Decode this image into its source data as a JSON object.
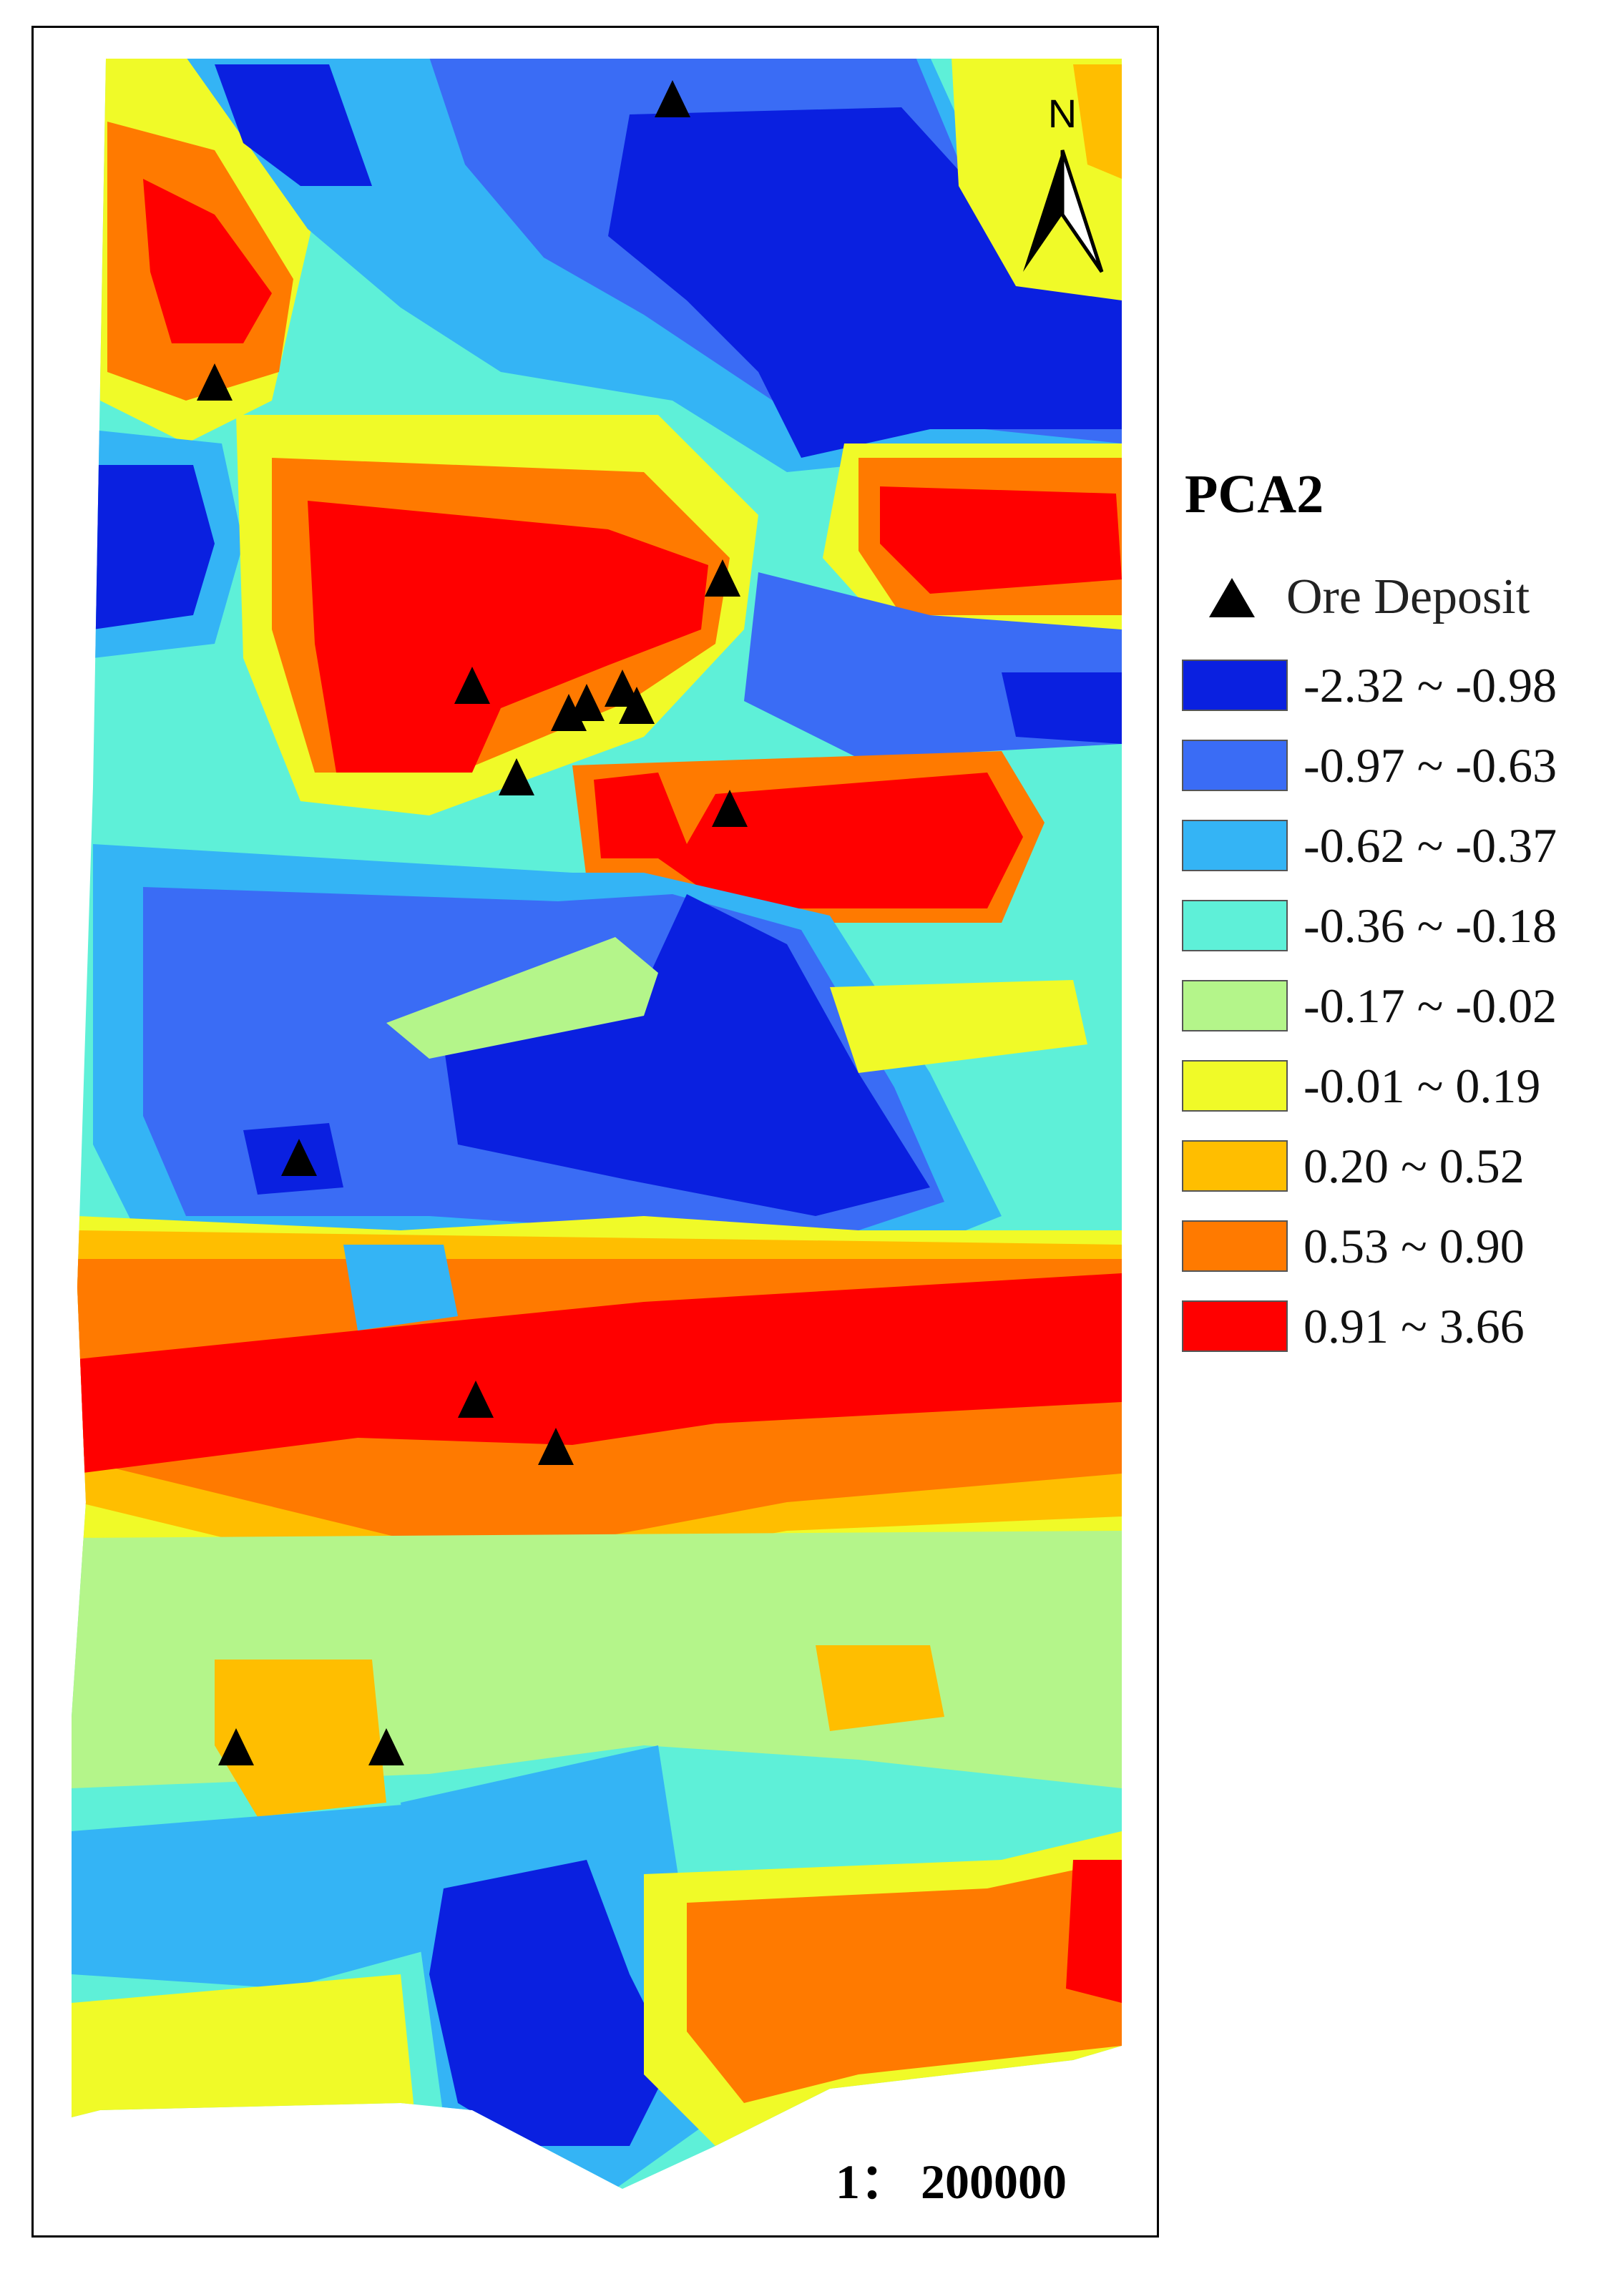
{
  "map": {
    "north_label": "N",
    "scale_text": "1：  200000",
    "colors": {
      "c1": "#0a20e0",
      "c2": "#3a6cf5",
      "c3": "#34b4f5",
      "c4": "#5ef0d8",
      "c5": "#b4f58a",
      "c6": "#f0fa28",
      "c7": "#ffbe00",
      "c8": "#ff7a00",
      "c9": "#ff0000"
    }
  },
  "legend": {
    "title": "PCA2",
    "ore_label": "Ore Deposit",
    "classes": [
      {
        "label": "-2.32 ~ -0.98",
        "color": "#0a20e0"
      },
      {
        "label": "-0.97 ~ -0.63",
        "color": "#3a6cf5"
      },
      {
        "label": "-0.62 ~ -0.37",
        "color": "#34b4f5"
      },
      {
        "label": "-0.36 ~ -0.18",
        "color": "#5ef0d8"
      },
      {
        "label": "-0.17 ~ -0.02",
        "color": "#b4f58a"
      },
      {
        "label": "-0.01 ~ 0.19",
        "color": "#f0fa28"
      },
      {
        "label": "0.20 ~ 0.52",
        "color": "#ffbe00"
      },
      {
        "label": "0.53 ~ 0.90",
        "color": "#ff7a00"
      },
      {
        "label": "0.91 ~ 3.66",
        "color": "#ff0000"
      }
    ]
  }
}
